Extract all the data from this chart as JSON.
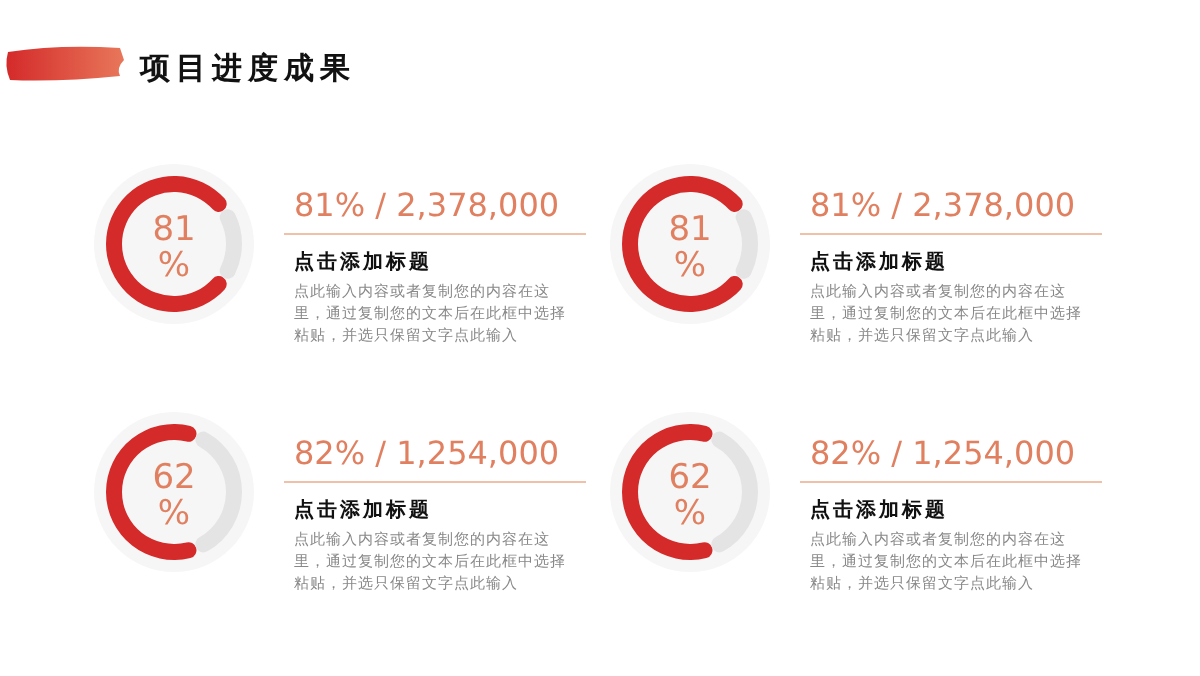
{
  "chart_data": [
    {
      "type": "other",
      "title": "项目进度成果"
    },
    {
      "type": "donut",
      "categories": [
        null,
        null
      ],
      "values": [
        81,
        19
      ],
      "colors": [
        "#d42a2a",
        "#e4e4e4"
      ],
      "value_labels": [
        "81 %",
        null
      ],
      "title": "81% / 2,378,000",
      "subtitle": "点击添加标题",
      "annotations": [
        "点此输入内容或者复制您的内容在这里，通过复制您的文本后在此框中选择粘贴，并选只保留文字点此输入"
      ]
    },
    {
      "type": "donut",
      "categories": [
        null,
        null
      ],
      "values": [
        81,
        19
      ],
      "colors": [
        "#d42a2a",
        "#e4e4e4"
      ],
      "value_labels": [
        "81 %",
        null
      ],
      "title": "81% / 2,378,000",
      "subtitle": "点击添加标题",
      "annotations": [
        "点此输入内容或者复制您的内容在这里，通过复制您的文本后在此框中选择粘贴，并选只保留文字点此输入"
      ]
    },
    {
      "type": "donut",
      "categories": [
        null,
        null
      ],
      "values": [
        62,
        38
      ],
      "colors": [
        "#d42a2a",
        "#e4e4e4"
      ],
      "value_labels": [
        "62 %",
        null
      ],
      "title": "82% / 1,254,000",
      "subtitle": "点击添加标题",
      "annotations": [
        "点此输入内容或者复制您的内容在这里，通过复制您的文本后在此框中选择粘贴，并选只保留文字点此输入"
      ]
    },
    {
      "type": "donut",
      "categories": [
        null,
        null
      ],
      "values": [
        62,
        38
      ],
      "colors": [
        "#d42a2a",
        "#e4e4e4"
      ],
      "value_labels": [
        "62 %",
        null
      ],
      "title": "82% / 1,254,000",
      "subtitle": "点击添加标题",
      "annotations": [
        "点此输入内容或者复制您的内容在这里，通过复制您的文本后在此框中选择粘贴，并选只保留文字点此输入"
      ]
    }
  ]
}
